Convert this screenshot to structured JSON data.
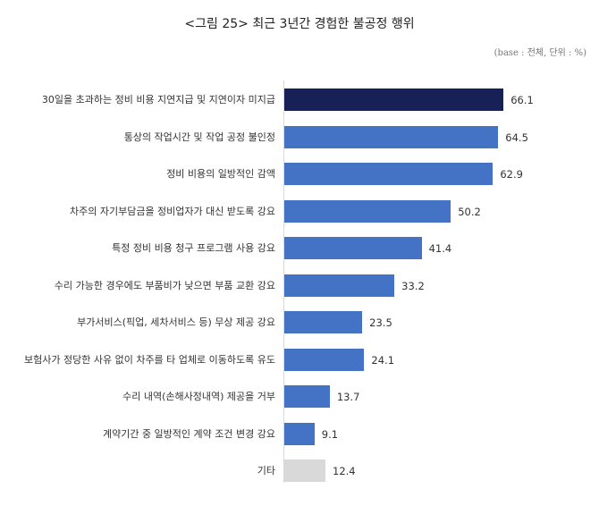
{
  "title": "<그림 25>  최근 3년간 경험한 불공정 행위",
  "base_note": "(base : 전체, 단위 : %)",
  "colors": {
    "highlight": "#172158",
    "primary": "#4472c4",
    "other": "#d9d9d9"
  },
  "chart_data": {
    "type": "bar",
    "orientation": "horizontal",
    "title": "<그림 25> 최근 3년간 경험한 불공정 행위",
    "subtitle": "(base : 전체, 단위 : %)",
    "xlabel": "",
    "ylabel": "",
    "unit": "%",
    "grid": false,
    "legend": null,
    "categories": [
      "30일을 초과하는 정비 비용 지연지급 및 지연이자 미지급",
      "통상의 작업시간 및 작업 공정 불인정",
      "정비 비용의 일방적인 감액",
      "차주의 자기부담금을 정비업자가 대신 받도록 강요",
      "특정 정비 비용 청구 프로그램 사용 강요",
      "수리 가능한 경우에도 부품비가 낮으면 부품 교환 강요",
      "부가서비스(픽업, 세차서비스 등) 무상 제공 강요",
      "보험사가 정당한 사유 없이 차주를 타 업체로 이동하도록 유도",
      "수리 내역(손해사정내역) 제공을 거부",
      "계약기간 중 일방적인 계약 조건 변경 강요",
      "기타"
    ],
    "values": [
      66.1,
      64.5,
      62.9,
      50.2,
      41.4,
      33.2,
      23.5,
      24.1,
      13.7,
      9.1,
      12.4
    ],
    "value_labels": [
      "66.1",
      "64.5",
      "62.9",
      "50.2",
      "41.4",
      "33.2",
      "23.5",
      "24.1",
      "13.7",
      "9.1",
      "12.4"
    ],
    "bar_colors": [
      "#172158",
      "#4472c4",
      "#4472c4",
      "#4472c4",
      "#4472c4",
      "#4472c4",
      "#4472c4",
      "#4472c4",
      "#4472c4",
      "#4472c4",
      "#d9d9d9"
    ]
  }
}
